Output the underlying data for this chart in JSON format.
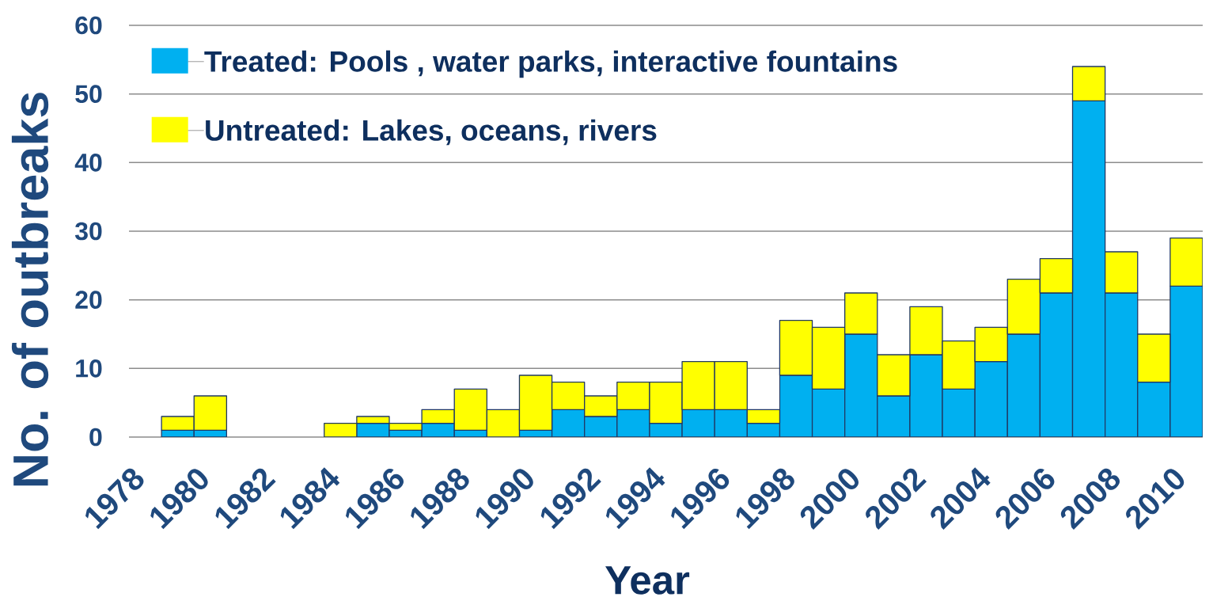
{
  "chart_data": {
    "type": "bar",
    "stacked": true,
    "xlabel": "Year",
    "ylabel": "No. of outbreaks",
    "categories": [
      "1978",
      null,
      "1980",
      null,
      "1982",
      null,
      "1984",
      null,
      "1986",
      null,
      "1988",
      null,
      "1990",
      null,
      "1992",
      null,
      "1994",
      null,
      "1996",
      null,
      "1998",
      null,
      "2000",
      null,
      "2002",
      null,
      "2004",
      null,
      "2006",
      null,
      "2008",
      null,
      "2010"
    ],
    "series": [
      {
        "name": "Treated: Pools , water parks, interactive fountains",
        "color": "#00b0f0",
        "values": [
          0,
          1,
          1,
          0,
          0,
          0,
          0,
          2,
          1,
          2,
          1,
          0,
          1,
          4,
          3,
          4,
          2,
          4,
          4,
          2,
          9,
          7,
          15,
          6,
          12,
          7,
          11,
          15,
          21,
          49,
          21,
          8,
          22
        ]
      },
      {
        "name": "Untreated: Lakes, oceans, rivers",
        "color": "#ffff00",
        "values": [
          0,
          2,
          5,
          0,
          0,
          0,
          2,
          1,
          1,
          2,
          6,
          4,
          8,
          4,
          3,
          4,
          6,
          7,
          7,
          2,
          8,
          9,
          6,
          6,
          7,
          7,
          5,
          8,
          5,
          5,
          6,
          7,
          7
        ]
      }
    ],
    "ylim": [
      0,
      60
    ],
    "yticks": [
      0,
      10,
      20,
      30,
      40,
      50,
      60
    ],
    "grid": "y",
    "legend": "top left"
  }
}
